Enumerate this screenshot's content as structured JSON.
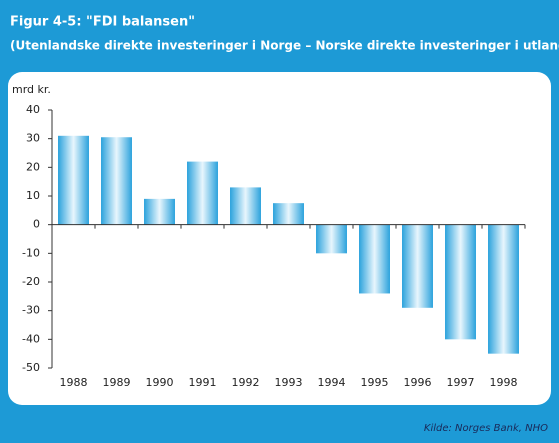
{
  "chart_data": {
    "type": "bar",
    "title": "Figur 4-5: \"FDI balansen\"",
    "subtitle": "(Utenlandske direkte investeringer i Norge – Norske direkte investeringer i utlandet)",
    "y_label": "mrd kr.",
    "source": "Kilde: Norges Bank, NHO",
    "categories": [
      "1988",
      "1989",
      "1990",
      "1991",
      "1992",
      "1993",
      "1994",
      "1995",
      "1996",
      "1997",
      "1998"
    ],
    "values": [
      31,
      30.5,
      9,
      22,
      13,
      7.5,
      -10,
      -24,
      -29,
      -40,
      -45
    ],
    "color": "#2ba2dc",
    "ylim": [
      -50,
      40
    ],
    "yticks": [
      -50,
      -40,
      -30,
      -20,
      -10,
      0,
      10,
      20,
      30,
      40
    ],
    "grid": false
  }
}
